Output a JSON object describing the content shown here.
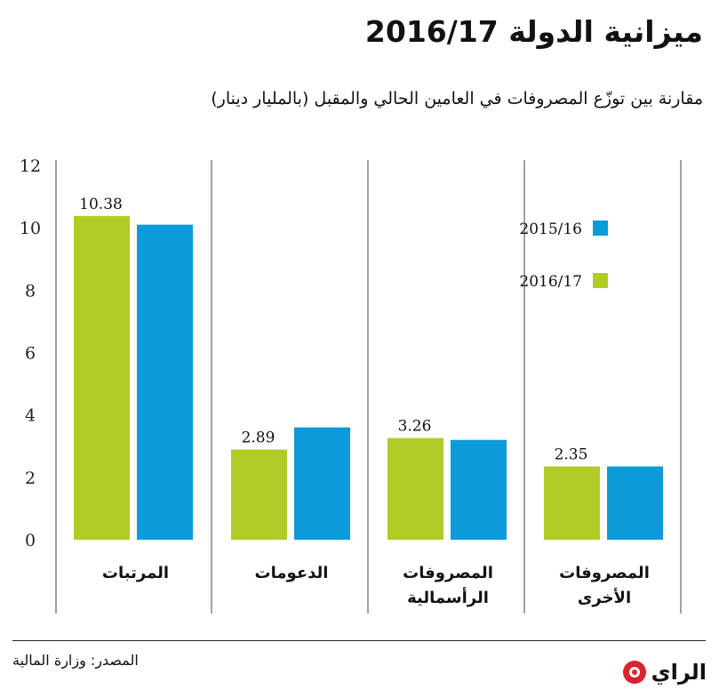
{
  "header": {
    "title": "ميزانية الدولة 2016/17",
    "subtitle": "مقارنة بين توزّع المصروفات في العامين الحالي والمقبل (بالمليار دينار)"
  },
  "footer": {
    "source": "المصدر: وزارة المالية",
    "logo_text": "الراي"
  },
  "colors": {
    "green": "#b3cb26",
    "blue": "#0d9ad8"
  },
  "chart_data": {
    "type": "bar",
    "categories": [
      [
        "المرتبات"
      ],
      [
        "الدعومات"
      ],
      [
        "المصروفات",
        "الرأسمالية"
      ],
      [
        "المصروفات",
        "الأخرى"
      ]
    ],
    "series": [
      {
        "name": "2016/17",
        "color": "#b3cb26",
        "values": [
          10.38,
          2.89,
          3.26,
          2.35
        ],
        "labels": [
          "10.38",
          "2.89",
          "3.26",
          "2.35"
        ]
      },
      {
        "name": "2015/16",
        "color": "#0d9ad8",
        "values": [
          10.1,
          3.6,
          3.2,
          2.35
        ]
      }
    ],
    "y_ticks": [
      0,
      2,
      4,
      6,
      8,
      10,
      12
    ],
    "ylim": [
      0,
      12
    ],
    "legend": "top-right",
    "grid": "vertical separators only"
  }
}
